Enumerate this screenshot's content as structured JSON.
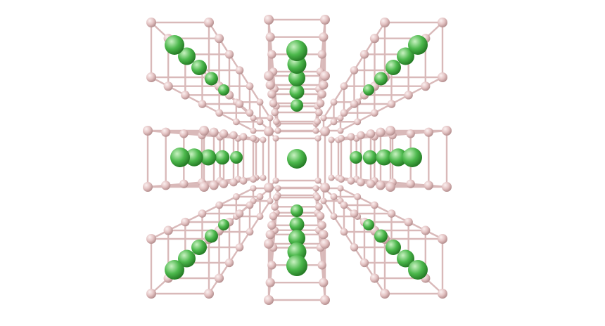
{
  "scene": {
    "subject": "crystal-structure-render",
    "colors": {
      "background": "#ffffff",
      "cage_atom": "#e3c2c2",
      "cage_atom_highlight": "#fbf1f1",
      "cage_atom_shade": "#b48e8e",
      "bond": "#d9b9b9",
      "guest_atom": "#4cb84c",
      "guest_atom_highlight": "#c9f2c2",
      "guest_atom_shade": "#247a24"
    }
  }
}
